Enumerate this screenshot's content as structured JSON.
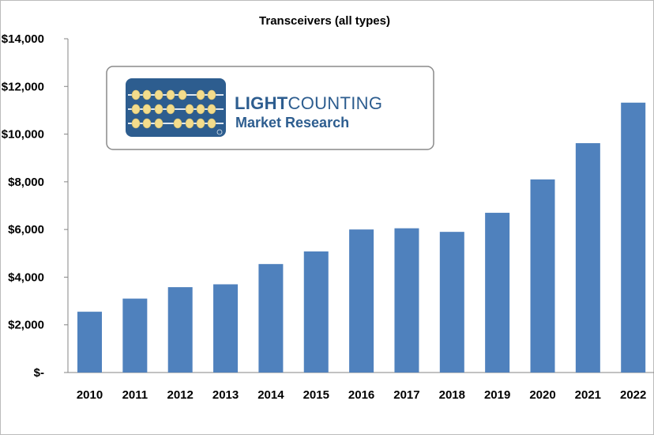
{
  "chart_data": {
    "type": "bar",
    "title": "Transceivers (all types)",
    "categories": [
      "2010",
      "2011",
      "2012",
      "2013",
      "2014",
      "2015",
      "2016",
      "2017",
      "2018",
      "2019",
      "2020",
      "2021",
      "2022"
    ],
    "values": [
      2550,
      3100,
      3580,
      3700,
      4550,
      5080,
      6000,
      6050,
      5900,
      6700,
      8100,
      9620,
      11320
    ],
    "ytick_values": [
      0,
      2000,
      4000,
      6000,
      8000,
      10000,
      12000,
      14000
    ],
    "ytick_labels": [
      "$-",
      "$2,000",
      "$4,000",
      "$6,000",
      "$8,000",
      "$10,000",
      "$12,000",
      "$14,000"
    ],
    "ylim": [
      0,
      14000
    ],
    "xlabel": "",
    "ylabel": "",
    "grid": false,
    "bar_color": "#4f81bd"
  },
  "logo": {
    "brand_top_bold": "LIGHT",
    "brand_top_rest": "COUNTING",
    "brand_bottom": "Market Research",
    "brand_color": "#2d5d8f",
    "bead_color": "#f3dc8c"
  }
}
